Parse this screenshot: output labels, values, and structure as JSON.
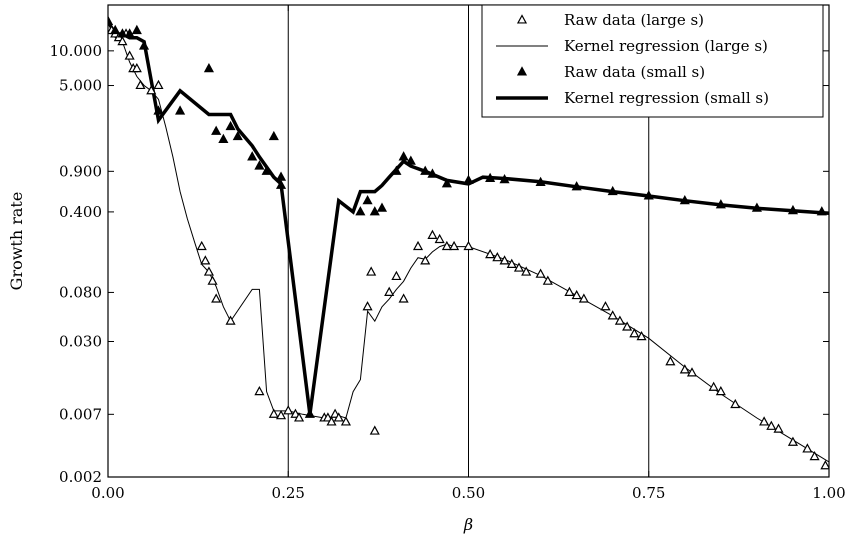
{
  "chart_data": {
    "type": "line",
    "xlabel": "β",
    "ylabel": "Growth rate",
    "xlim": [
      0,
      1
    ],
    "ylim": [
      0.002,
      25
    ],
    "yscale": "log",
    "x_ticks": [
      0.0,
      0.25,
      0.5,
      0.75,
      1.0
    ],
    "x_tick_labels": [
      "0.00",
      "0.25",
      "0.50",
      "0.75",
      "1.00"
    ],
    "y_ticks": [
      0.002,
      0.007,
      0.03,
      0.08,
      0.4,
      0.9,
      5,
      10
    ],
    "y_tick_labels": [
      "0.002",
      "0.007",
      "0.030",
      "0.080",
      "0.400",
      "0.900",
      "5.000",
      "10.000"
    ],
    "vlines": [
      0.25,
      0.5,
      0.75
    ],
    "legend_position": "top-right",
    "series": [
      {
        "name": "Raw data (large s)",
        "kind": "scatter",
        "marker": "open-triangle",
        "points": [
          [
            0.0,
            18
          ],
          [
            0.005,
            15
          ],
          [
            0.01,
            14
          ],
          [
            0.015,
            13
          ],
          [
            0.02,
            12
          ],
          [
            0.025,
            14
          ],
          [
            0.03,
            9
          ],
          [
            0.035,
            7
          ],
          [
            0.04,
            7
          ],
          [
            0.045,
            5
          ],
          [
            0.06,
            4.5
          ],
          [
            0.07,
            5
          ],
          [
            0.13,
            0.2
          ],
          [
            0.135,
            0.15
          ],
          [
            0.14,
            0.12
          ],
          [
            0.145,
            0.1
          ],
          [
            0.15,
            0.07
          ],
          [
            0.17,
            0.045
          ],
          [
            0.21,
            0.011
          ],
          [
            0.23,
            0.007
          ],
          [
            0.24,
            0.0068
          ],
          [
            0.25,
            0.0075
          ],
          [
            0.26,
            0.007
          ],
          [
            0.265,
            0.0065
          ],
          [
            0.3,
            0.0065
          ],
          [
            0.305,
            0.0065
          ],
          [
            0.31,
            0.006
          ],
          [
            0.315,
            0.007
          ],
          [
            0.32,
            0.0065
          ],
          [
            0.33,
            0.006
          ],
          [
            0.36,
            0.06
          ],
          [
            0.365,
            0.12
          ],
          [
            0.37,
            0.005
          ],
          [
            0.39,
            0.08
          ],
          [
            0.4,
            0.11
          ],
          [
            0.41,
            0.07
          ],
          [
            0.43,
            0.2
          ],
          [
            0.44,
            0.15
          ],
          [
            0.45,
            0.25
          ],
          [
            0.46,
            0.23
          ],
          [
            0.47,
            0.2
          ],
          [
            0.48,
            0.2
          ],
          [
            0.5,
            0.2
          ],
          [
            0.53,
            0.17
          ],
          [
            0.54,
            0.16
          ],
          [
            0.55,
            0.15
          ],
          [
            0.56,
            0.14
          ],
          [
            0.57,
            0.13
          ],
          [
            0.58,
            0.12
          ],
          [
            0.6,
            0.115
          ],
          [
            0.61,
            0.1
          ],
          [
            0.64,
            0.08
          ],
          [
            0.65,
            0.075
          ],
          [
            0.66,
            0.07
          ],
          [
            0.69,
            0.06
          ],
          [
            0.7,
            0.05
          ],
          [
            0.71,
            0.045
          ],
          [
            0.72,
            0.04
          ],
          [
            0.73,
            0.035
          ],
          [
            0.74,
            0.033
          ],
          [
            0.78,
            0.02
          ],
          [
            0.8,
            0.017
          ],
          [
            0.81,
            0.016
          ],
          [
            0.84,
            0.012
          ],
          [
            0.85,
            0.011
          ],
          [
            0.87,
            0.0085
          ],
          [
            0.91,
            0.006
          ],
          [
            0.92,
            0.0055
          ],
          [
            0.93,
            0.0052
          ],
          [
            0.95,
            0.004
          ],
          [
            0.97,
            0.0035
          ],
          [
            0.98,
            0.003
          ],
          [
            0.995,
            0.0025
          ]
        ]
      },
      {
        "name": "Kernel regression (large s)",
        "kind": "line",
        "stroke_width": 1,
        "points": [
          [
            0.0,
            18
          ],
          [
            0.01,
            13
          ],
          [
            0.02,
            12
          ],
          [
            0.03,
            8
          ],
          [
            0.04,
            6
          ],
          [
            0.05,
            5
          ],
          [
            0.06,
            4.5
          ],
          [
            0.07,
            3.8
          ],
          [
            0.08,
            2.2
          ],
          [
            0.09,
            1.2
          ],
          [
            0.1,
            0.6
          ],
          [
            0.11,
            0.35
          ],
          [
            0.12,
            0.22
          ],
          [
            0.13,
            0.14
          ],
          [
            0.14,
            0.12
          ],
          [
            0.15,
            0.09
          ],
          [
            0.16,
            0.06
          ],
          [
            0.17,
            0.045
          ],
          [
            0.2,
            0.085
          ],
          [
            0.21,
            0.085
          ],
          [
            0.22,
            0.011
          ],
          [
            0.23,
            0.0075
          ],
          [
            0.25,
            0.0075
          ],
          [
            0.27,
            0.007
          ],
          [
            0.3,
            0.0065
          ],
          [
            0.32,
            0.0068
          ],
          [
            0.33,
            0.0065
          ],
          [
            0.34,
            0.011
          ],
          [
            0.35,
            0.014
          ],
          [
            0.36,
            0.055
          ],
          [
            0.37,
            0.045
          ],
          [
            0.38,
            0.06
          ],
          [
            0.39,
            0.07
          ],
          [
            0.4,
            0.085
          ],
          [
            0.41,
            0.1
          ],
          [
            0.42,
            0.13
          ],
          [
            0.43,
            0.16
          ],
          [
            0.44,
            0.155
          ],
          [
            0.45,
            0.18
          ],
          [
            0.46,
            0.2
          ],
          [
            0.47,
            0.21
          ],
          [
            0.48,
            0.2
          ],
          [
            0.5,
            0.2
          ],
          [
            0.55,
            0.155
          ],
          [
            0.6,
            0.112
          ],
          [
            0.65,
            0.075
          ],
          [
            0.7,
            0.05
          ],
          [
            0.75,
            0.032
          ],
          [
            0.8,
            0.018
          ],
          [
            0.85,
            0.0105
          ],
          [
            0.9,
            0.0065
          ],
          [
            0.95,
            0.0042
          ],
          [
            1.0,
            0.0027
          ]
        ]
      },
      {
        "name": "Raw data (small s)",
        "kind": "scatter",
        "marker": "filled-triangle",
        "points": [
          [
            0.0,
            18
          ],
          [
            0.01,
            15
          ],
          [
            0.02,
            14
          ],
          [
            0.03,
            14
          ],
          [
            0.04,
            15
          ],
          [
            0.05,
            11
          ],
          [
            0.07,
            3
          ],
          [
            0.1,
            3
          ],
          [
            0.14,
            7
          ],
          [
            0.15,
            2
          ],
          [
            0.16,
            1.7
          ],
          [
            0.17,
            2.2
          ],
          [
            0.18,
            1.8
          ],
          [
            0.2,
            1.2
          ],
          [
            0.21,
            1
          ],
          [
            0.22,
            0.9
          ],
          [
            0.23,
            1.8
          ],
          [
            0.24,
            0.8
          ],
          [
            0.24,
            0.68
          ],
          [
            0.28,
            0.007
          ],
          [
            0.35,
            0.4
          ],
          [
            0.36,
            0.5
          ],
          [
            0.37,
            0.4
          ],
          [
            0.38,
            0.43
          ],
          [
            0.4,
            0.9
          ],
          [
            0.41,
            1.2
          ],
          [
            0.42,
            1.1
          ],
          [
            0.44,
            0.9
          ],
          [
            0.45,
            0.85
          ],
          [
            0.47,
            0.7
          ],
          [
            0.5,
            0.75
          ],
          [
            0.53,
            0.78
          ],
          [
            0.55,
            0.76
          ],
          [
            0.6,
            0.72
          ],
          [
            0.65,
            0.66
          ],
          [
            0.7,
            0.6
          ],
          [
            0.75,
            0.55
          ],
          [
            0.8,
            0.5
          ],
          [
            0.85,
            0.46
          ],
          [
            0.9,
            0.43
          ],
          [
            0.95,
            0.41
          ],
          [
            0.99,
            0.4
          ]
        ]
      },
      {
        "name": "Kernel regression (small s)",
        "kind": "line",
        "stroke_width": 3.5,
        "points": [
          [
            0.0,
            18
          ],
          [
            0.01,
            14
          ],
          [
            0.02,
            14
          ],
          [
            0.03,
            13
          ],
          [
            0.04,
            13
          ],
          [
            0.05,
            12
          ],
          [
            0.07,
            2.5
          ],
          [
            0.1,
            4.5
          ],
          [
            0.14,
            2.8
          ],
          [
            0.17,
            2.8
          ],
          [
            0.18,
            2.1
          ],
          [
            0.2,
            1.5
          ],
          [
            0.21,
            1.2
          ],
          [
            0.23,
            0.8
          ],
          [
            0.24,
            0.7
          ],
          [
            0.28,
            0.007
          ],
          [
            0.32,
            0.5
          ],
          [
            0.34,
            0.4
          ],
          [
            0.35,
            0.6
          ],
          [
            0.37,
            0.6
          ],
          [
            0.38,
            0.68
          ],
          [
            0.39,
            0.8
          ],
          [
            0.41,
            1.1
          ],
          [
            0.42,
            1.0
          ],
          [
            0.44,
            0.9
          ],
          [
            0.47,
            0.75
          ],
          [
            0.5,
            0.7
          ],
          [
            0.52,
            0.8
          ],
          [
            0.55,
            0.78
          ],
          [
            0.6,
            0.73
          ],
          [
            0.65,
            0.66
          ],
          [
            0.7,
            0.6
          ],
          [
            0.75,
            0.55
          ],
          [
            0.8,
            0.5
          ],
          [
            0.85,
            0.46
          ],
          [
            0.9,
            0.43
          ],
          [
            0.95,
            0.41
          ],
          [
            1.0,
            0.39
          ]
        ]
      }
    ]
  }
}
